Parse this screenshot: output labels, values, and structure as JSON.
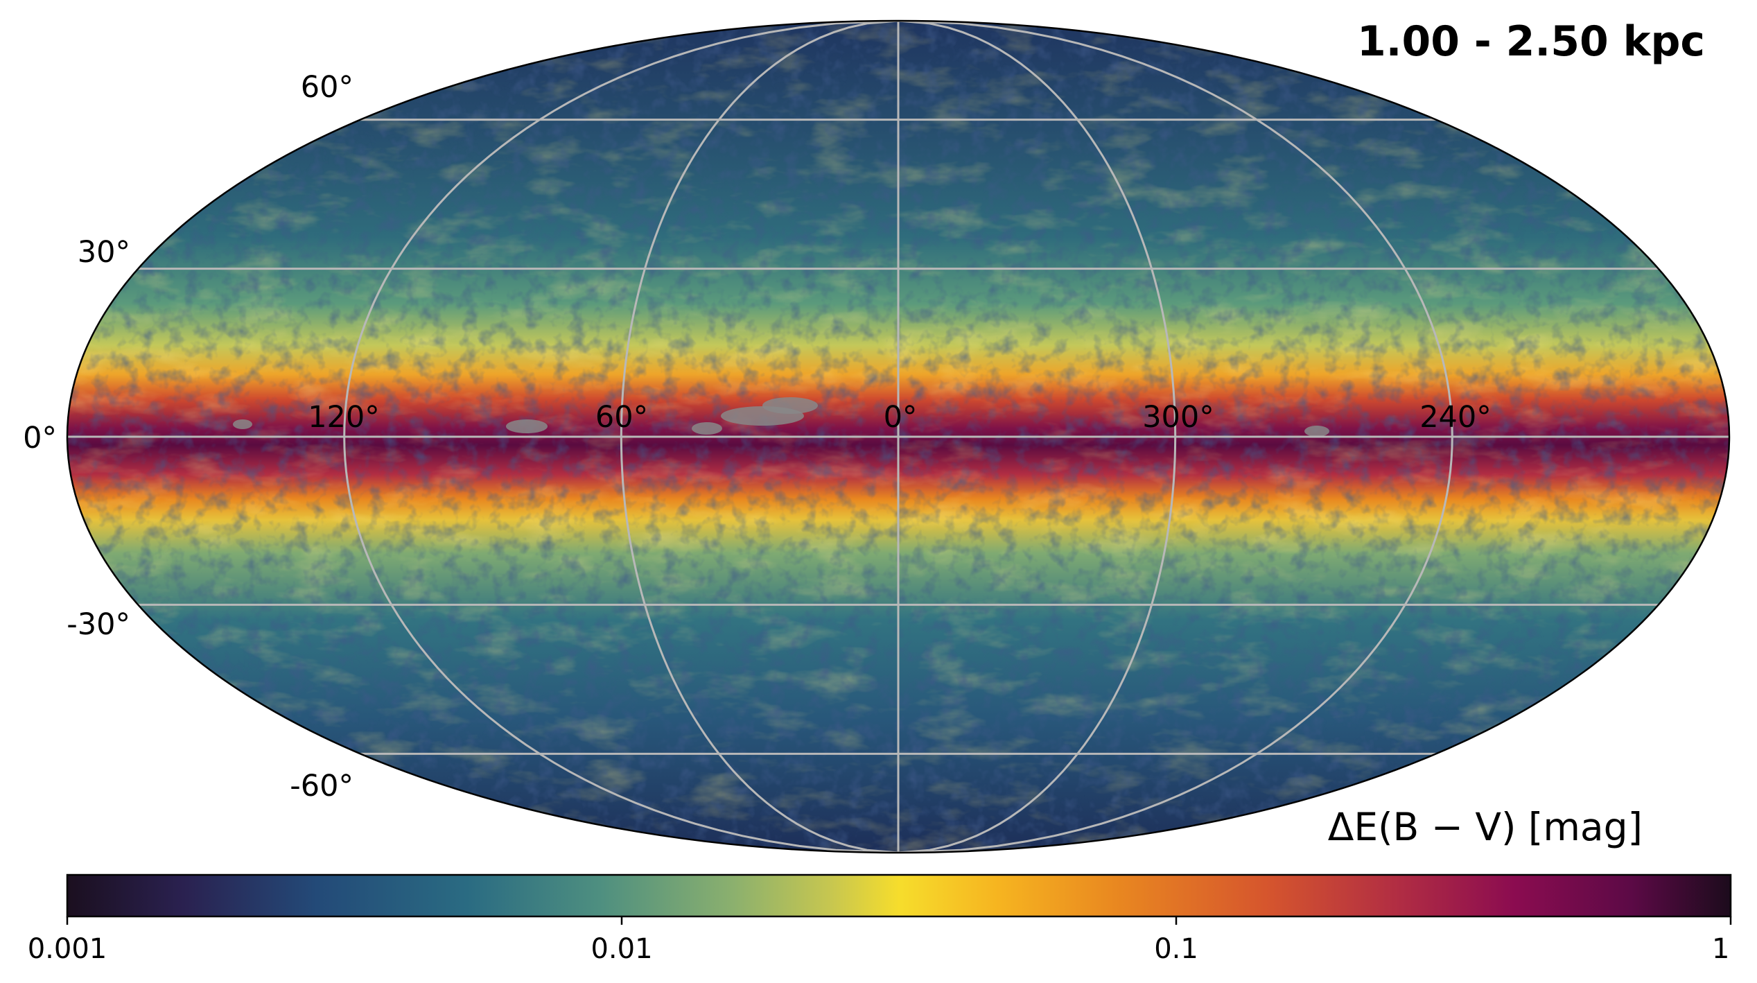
{
  "title": "1.00 - 2.50 kpc",
  "map": {
    "projection": "mollweide",
    "grid": true,
    "lat_labels": [
      "60°",
      "30°",
      "0°",
      "-30°",
      "-60°"
    ],
    "lon_labels": [
      "120°",
      "60°",
      "0°",
      "300°",
      "240°"
    ],
    "null_pixel_color": "#888888",
    "graticule_color": "#b8b8b8"
  },
  "colorbar": {
    "label": "ΔE(B − V) [mag]",
    "scale": "log",
    "ticks": [
      "0.001",
      "0.01",
      "0.1",
      "1"
    ],
    "colormap": "inferno-like",
    "stops": [
      "#1b0f1f",
      "#2a2150",
      "#234a78",
      "#2a6b82",
      "#4e8f80",
      "#8bb06e",
      "#c8c74f",
      "#f6dd2c",
      "#f6b420",
      "#e98820",
      "#d6562d",
      "#b12d43",
      "#8b0c50",
      "#5c0a46",
      "#1c0b1c"
    ]
  }
}
